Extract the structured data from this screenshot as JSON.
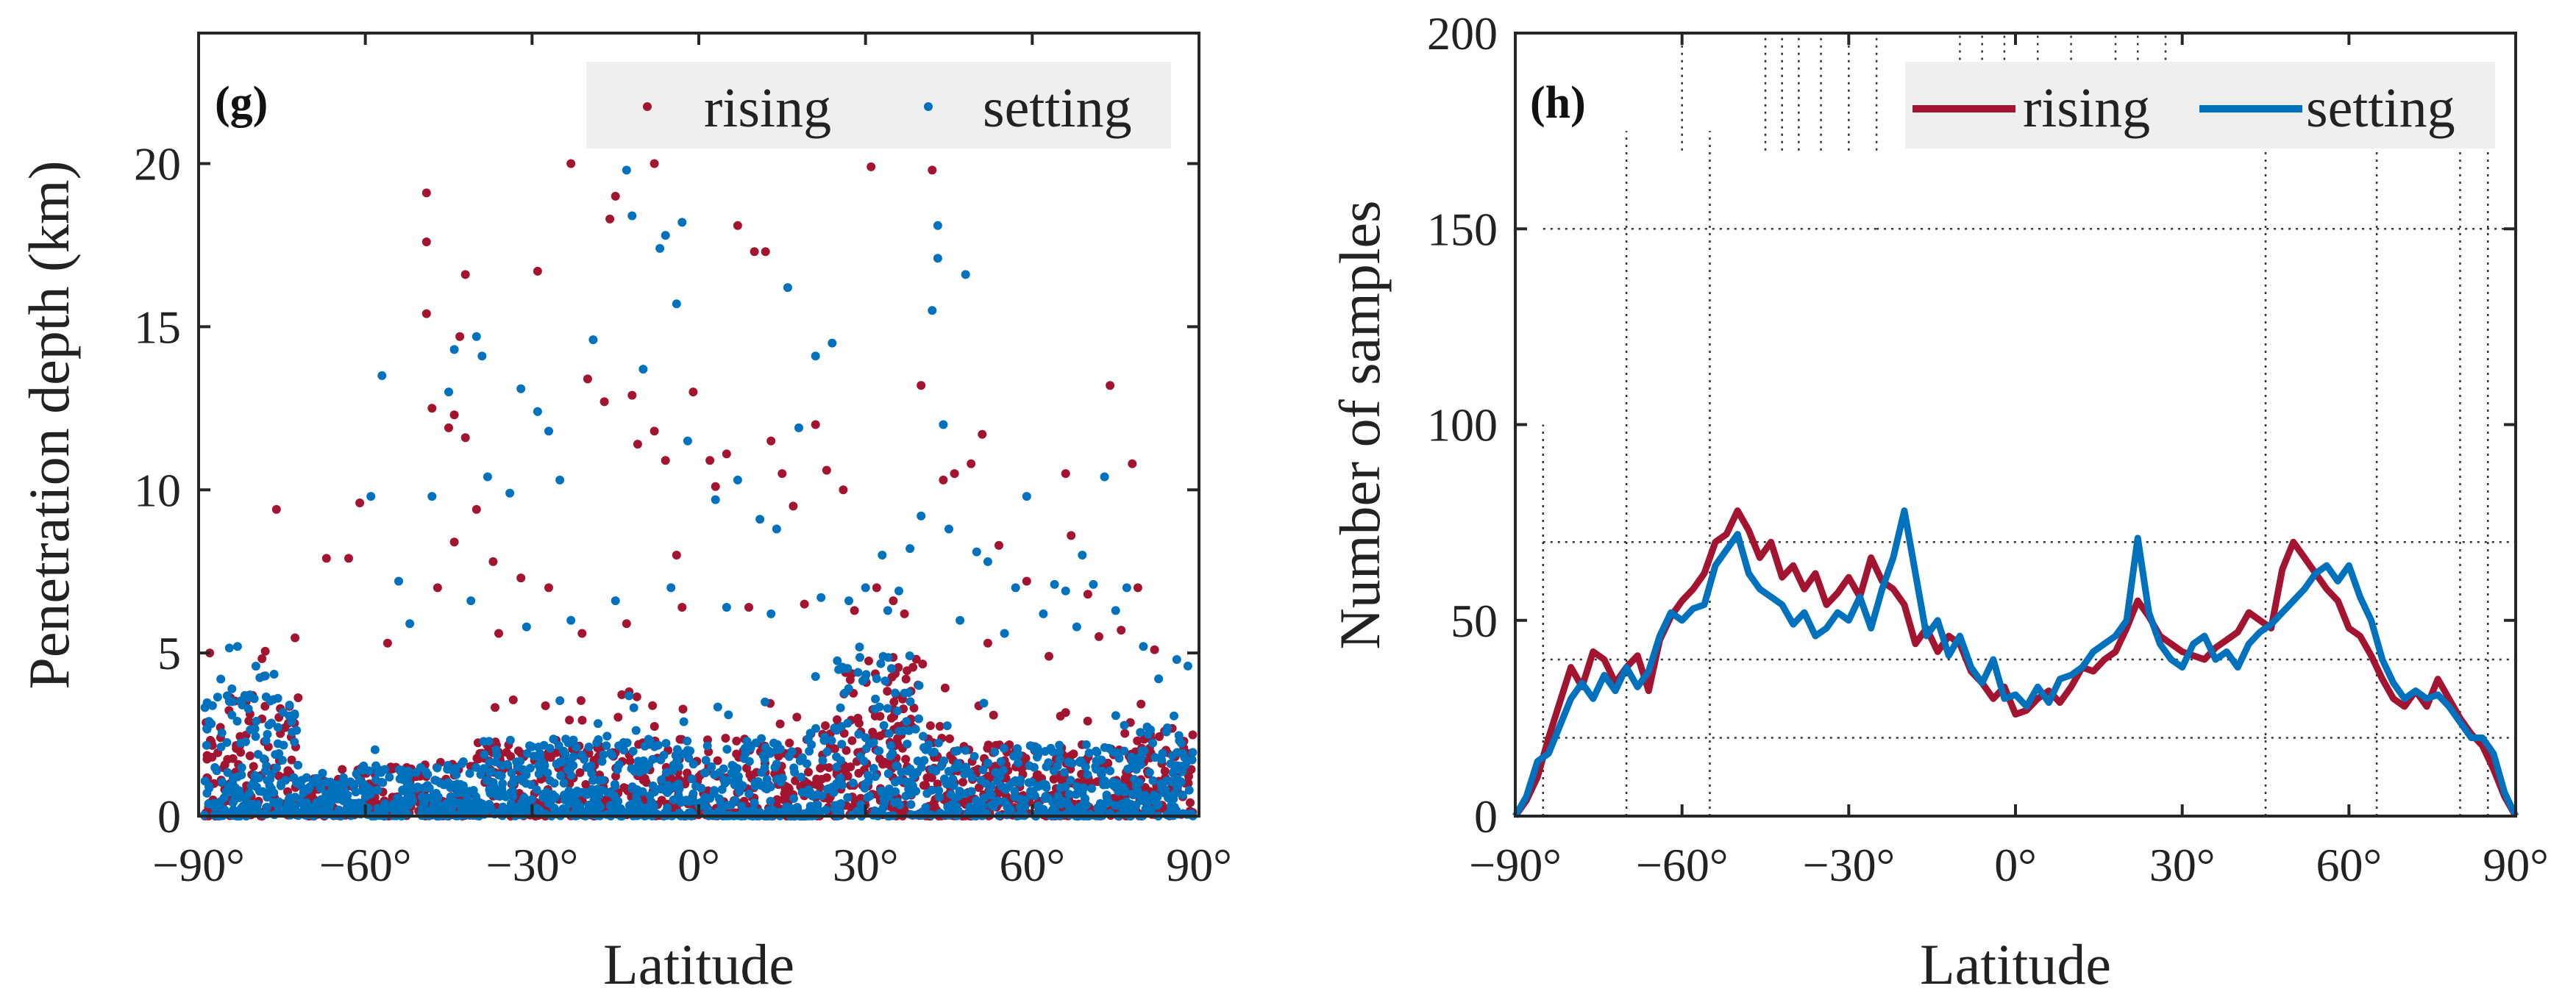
{
  "chart_data": [
    {
      "type": "scatter",
      "panel_label": "(g)",
      "xlabel": "Latitude",
      "ylabel": "Penetration depth (km)",
      "xlim": [
        -90,
        90
      ],
      "ylim": [
        0,
        24
      ],
      "xticks": [
        -90,
        -60,
        -30,
        0,
        30,
        60,
        90
      ],
      "xtick_labels": [
        "−90°",
        "−60°",
        "−30°",
        "0°",
        "30°",
        "60°",
        "90°"
      ],
      "yticks": [
        0,
        5,
        10,
        15,
        20
      ],
      "ytick_labels": [
        "0",
        "5",
        "10",
        "15",
        "20"
      ],
      "grid": false,
      "legend_position": "top-right",
      "series": [
        {
          "name": "rising",
          "color": "#a2142f",
          "scattered_points": [
            [
              -76,
              9.4
            ],
            [
              -67,
              7.9
            ],
            [
              -63,
              7.9
            ],
            [
              -61,
              9.6
            ],
            [
              -49,
              19.1
            ],
            [
              -49,
              17.6
            ],
            [
              -49,
              15.4
            ],
            [
              -48,
              12.5
            ],
            [
              -45,
              11.9
            ],
            [
              -44,
              12.3
            ],
            [
              -43,
              14.7
            ],
            [
              -42,
              16.6
            ],
            [
              -42,
              11.6
            ],
            [
              -40,
              9.4
            ],
            [
              -37,
              7.8
            ],
            [
              -32,
              7.3
            ],
            [
              -29,
              16.7
            ],
            [
              -23,
              20.0
            ],
            [
              -20,
              13.4
            ],
            [
              -17,
              12.7
            ],
            [
              -16,
              18.3
            ],
            [
              -15,
              19.0
            ],
            [
              -12,
              12.9
            ],
            [
              -11,
              11.4
            ],
            [
              -8,
              20.0
            ],
            [
              -8,
              11.8
            ],
            [
              -6,
              10.9
            ],
            [
              -4,
              8.0
            ],
            [
              -1,
              13.0
            ],
            [
              2,
              10.9
            ],
            [
              3,
              10.1
            ],
            [
              5,
              11.1
            ],
            [
              7,
              18.1
            ],
            [
              10,
              17.3
            ],
            [
              12,
              17.3
            ],
            [
              13,
              11.5
            ],
            [
              15,
              10.5
            ],
            [
              17,
              9.5
            ],
            [
              21,
              12.0
            ],
            [
              23,
              10.6
            ],
            [
              26,
              10.0
            ],
            [
              31,
              19.9
            ],
            [
              32,
              7.0
            ],
            [
              35,
              6.6
            ],
            [
              40,
              13.2
            ],
            [
              42,
              19.8
            ],
            [
              44,
              10.3
            ],
            [
              46,
              10.5
            ],
            [
              49,
              10.8
            ],
            [
              51,
              11.7
            ],
            [
              54,
              8.3
            ],
            [
              59,
              7.2
            ],
            [
              66,
              10.5
            ],
            [
              67,
              8.6
            ],
            [
              70,
              6.8
            ],
            [
              74,
              13.2
            ],
            [
              76,
              5.7
            ],
            [
              78,
              10.8
            ],
            [
              79,
              7.0
            ],
            [
              82,
              5.1
            ],
            [
              -88,
              5.0
            ],
            [
              -56,
              5.3
            ],
            [
              -47,
              7.0
            ],
            [
              -44,
              8.4
            ],
            [
              -36,
              5.6
            ],
            [
              -27,
              7.0
            ],
            [
              -21,
              5.6
            ],
            [
              -13,
              5.9
            ],
            [
              -3,
              6.4
            ],
            [
              9,
              6.4
            ],
            [
              19,
              6.5
            ],
            [
              28,
              6.3
            ],
            [
              37,
              6.2
            ],
            [
              52,
              5.3
            ],
            [
              63,
              4.9
            ],
            [
              72,
              5.5
            ]
          ]
        },
        {
          "name": "setting",
          "color": "#0072bd",
          "scattered_points": [
            [
              -83,
              5.2
            ],
            [
              -57,
              13.5
            ],
            [
              -59,
              9.8
            ],
            [
              -54,
              7.2
            ],
            [
              -48,
              9.8
            ],
            [
              -45,
              13.0
            ],
            [
              -44,
              14.3
            ],
            [
              -40,
              14.7
            ],
            [
              -39,
              14.1
            ],
            [
              -38,
              10.4
            ],
            [
              -34,
              9.9
            ],
            [
              -32,
              13.1
            ],
            [
              -29,
              12.4
            ],
            [
              -27,
              11.8
            ],
            [
              -25,
              10.3
            ],
            [
              -19,
              14.6
            ],
            [
              -13,
              19.8
            ],
            [
              -12,
              18.4
            ],
            [
              -10,
              13.7
            ],
            [
              -7,
              17.4
            ],
            [
              -6,
              17.8
            ],
            [
              -4,
              15.7
            ],
            [
              -3,
              18.2
            ],
            [
              -2,
              11.5
            ],
            [
              3,
              9.7
            ],
            [
              7,
              10.3
            ],
            [
              11,
              9.1
            ],
            [
              14,
              8.8
            ],
            [
              16,
              16.2
            ],
            [
              18,
              11.9
            ],
            [
              21,
              14.1
            ],
            [
              24,
              14.5
            ],
            [
              27,
              6.6
            ],
            [
              30,
              7.0
            ],
            [
              33,
              8.0
            ],
            [
              36,
              6.9
            ],
            [
              38,
              8.2
            ],
            [
              40,
              9.2
            ],
            [
              42,
              15.5
            ],
            [
              43,
              17.1
            ],
            [
              43,
              18.1
            ],
            [
              44,
              12.0
            ],
            [
              45,
              8.8
            ],
            [
              48,
              16.6
            ],
            [
              50,
              8.1
            ],
            [
              52,
              7.8
            ],
            [
              57,
              7.0
            ],
            [
              59,
              9.8
            ],
            [
              64,
              7.1
            ],
            [
              66,
              6.9
            ],
            [
              69,
              8.0
            ],
            [
              71,
              7.1
            ],
            [
              73,
              10.4
            ],
            [
              75,
              6.3
            ],
            [
              77,
              7.0
            ],
            [
              80,
              5.2
            ],
            [
              86,
              4.8
            ],
            [
              88,
              4.6
            ],
            [
              -52,
              5.9
            ],
            [
              -41,
              6.6
            ],
            [
              -31,
              5.8
            ],
            [
              -23,
              6.0
            ],
            [
              -15,
              6.6
            ],
            [
              -5,
              7.0
            ],
            [
              5,
              6.4
            ],
            [
              13,
              6.2
            ],
            [
              22,
              6.7
            ],
            [
              34,
              6.3
            ],
            [
              47,
              6.0
            ],
            [
              55,
              5.6
            ],
            [
              62,
              6.2
            ],
            [
              68,
              5.8
            ],
            [
              -86,
              4.2
            ],
            [
              -78,
              4.3
            ],
            [
              -84,
              3.9
            ],
            [
              -80,
              3.6
            ]
          ]
        }
      ]
    },
    {
      "type": "line",
      "panel_label": "(h)",
      "xlabel": "Latitude",
      "ylabel": "Number of samples",
      "xlim": [
        -90,
        90
      ],
      "ylim": [
        0,
        200
      ],
      "xticks": [
        -90,
        -60,
        -30,
        0,
        30,
        60,
        90
      ],
      "xtick_labels": [
        "−90°",
        "−60°",
        "−30°",
        "0°",
        "30°",
        "60°",
        "90°"
      ],
      "yticks": [
        0,
        50,
        100,
        150,
        200
      ],
      "ytick_labels": [
        "0",
        "50",
        "100",
        "150",
        "200"
      ],
      "grid": "partial dotted",
      "legend_position": "top-right",
      "x": [
        -90,
        -88,
        -86,
        -84,
        -82,
        -80,
        -78,
        -76,
        -74,
        -72,
        -70,
        -68,
        -66,
        -64,
        -62,
        -60,
        -58,
        -56,
        -54,
        -52,
        -50,
        -48,
        -46,
        -44,
        -42,
        -40,
        -38,
        -36,
        -34,
        -32,
        -30,
        -28,
        -26,
        -24,
        -22,
        -20,
        -18,
        -16,
        -14,
        -12,
        -10,
        -8,
        -6,
        -4,
        -2,
        0,
        2,
        4,
        6,
        8,
        10,
        12,
        14,
        16,
        18,
        20,
        22,
        24,
        26,
        28,
        30,
        32,
        34,
        36,
        38,
        40,
        42,
        44,
        46,
        48,
        50,
        52,
        54,
        56,
        58,
        60,
        62,
        64,
        66,
        68,
        70,
        72,
        74,
        76,
        78,
        80,
        82,
        84,
        86,
        88,
        90
      ],
      "series": [
        {
          "name": "rising",
          "color": "#a2142f",
          "values": [
            0,
            4,
            10,
            20,
            29,
            38,
            33,
            42,
            40,
            34,
            38,
            41,
            32,
            45,
            51,
            55,
            58,
            62,
            70,
            72,
            78,
            73,
            66,
            70,
            61,
            64,
            58,
            62,
            54,
            57,
            61,
            56,
            66,
            60,
            58,
            54,
            44,
            48,
            42,
            46,
            44,
            37,
            34,
            30,
            33,
            26,
            27,
            30,
            32,
            29,
            33,
            38,
            37,
            40,
            42,
            48,
            55,
            51,
            46,
            44,
            42,
            41,
            40,
            43,
            45,
            47,
            52,
            50,
            48,
            63,
            70,
            66,
            62,
            58,
            55,
            48,
            46,
            41,
            35,
            30,
            28,
            32,
            28,
            35,
            30,
            25,
            21,
            18,
            12,
            5,
            0
          ]
        },
        {
          "name": "setting",
          "color": "#0072bd",
          "values": [
            0,
            5,
            14,
            16,
            23,
            30,
            34,
            30,
            36,
            32,
            38,
            33,
            37,
            46,
            52,
            50,
            53,
            54,
            64,
            68,
            72,
            62,
            58,
            56,
            54,
            49,
            52,
            46,
            48,
            52,
            50,
            56,
            48,
            58,
            66,
            78,
            62,
            46,
            50,
            41,
            46,
            38,
            34,
            40,
            30,
            31,
            28,
            33,
            29,
            35,
            36,
            38,
            42,
            44,
            46,
            50,
            71,
            52,
            44,
            40,
            38,
            44,
            46,
            40,
            42,
            38,
            44,
            47,
            49,
            52,
            55,
            58,
            62,
            64,
            60,
            64,
            56,
            50,
            40,
            34,
            30,
            32,
            30,
            31,
            28,
            24,
            20,
            20,
            16,
            6,
            0
          ]
        }
      ]
    }
  ]
}
